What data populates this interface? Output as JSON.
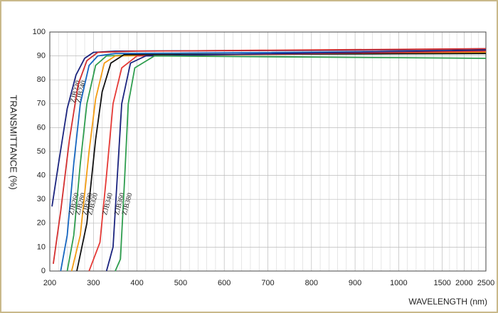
{
  "chart_data": {
    "type": "line",
    "x_label": "WAVELENGTH (nm)",
    "y_label": "TRANSMITTANCE (%)",
    "xlim": [
      200,
      2500
    ],
    "xticks": [
      200,
      300,
      400,
      500,
      600,
      700,
      800,
      900,
      1000,
      1500,
      2000,
      2500
    ],
    "ylim": [
      0,
      100
    ],
    "yticks": [
      0,
      10,
      20,
      30,
      40,
      50,
      60,
      70,
      80,
      90,
      100
    ],
    "grid": true,
    "series": [
      {
        "name": "ZJB220",
        "color": "#1a237e",
        "x": [
          205,
          220,
          240,
          260,
          280,
          300,
          350,
          1000,
          2500
        ],
        "values": [
          27,
          45,
          68,
          82,
          89,
          91.5,
          92,
          92.5,
          93
        ]
      },
      {
        "name": "ZJB240",
        "color": "#d32f2f",
        "x": [
          208,
          225,
          245,
          265,
          285,
          310,
          400,
          2500
        ],
        "values": [
          3,
          25,
          55,
          78,
          88,
          91.5,
          92,
          93
        ]
      },
      {
        "name": "ZJB260",
        "color": "#1565c0",
        "x": [
          225,
          240,
          255,
          270,
          290,
          310,
          350,
          2500
        ],
        "values": [
          0,
          15,
          45,
          70,
          86,
          90,
          91,
          92
        ]
      },
      {
        "name": "ZJB280",
        "color": "#2e9d4e",
        "x": [
          240,
          255,
          270,
          285,
          305,
          330,
          400,
          2500
        ],
        "values": [
          0,
          15,
          45,
          70,
          86,
          90,
          90.5,
          91
        ]
      },
      {
        "name": "ZJB300",
        "color": "#f39c12",
        "x": [
          250,
          270,
          290,
          305,
          325,
          350,
          2500
        ],
        "values": [
          0,
          15,
          50,
          72,
          87,
          90,
          91.5
        ]
      },
      {
        "name": "ZJB320",
        "color": "#111111",
        "x": [
          262,
          285,
          305,
          320,
          340,
          370,
          2500
        ],
        "values": [
          0,
          20,
          55,
          75,
          87,
          90.5,
          91
        ]
      },
      {
        "name": "ZJB340",
        "color": "#e53935",
        "x": [
          290,
          315,
          330,
          345,
          365,
          400,
          2500
        ],
        "values": [
          0,
          12,
          40,
          70,
          85,
          90,
          92
        ]
      },
      {
        "name": "ZJB360",
        "color": "#1a237e",
        "x": [
          330,
          345,
          355,
          365,
          385,
          420,
          2500
        ],
        "values": [
          0,
          10,
          40,
          70,
          87,
          90,
          92.5
        ]
      },
      {
        "name": "ZJB380",
        "color": "#2e9d4e",
        "x": [
          350,
          362,
          372,
          380,
          395,
          440,
          2500
        ],
        "values": [
          0,
          5,
          40,
          70,
          85,
          90,
          89
        ]
      }
    ]
  }
}
